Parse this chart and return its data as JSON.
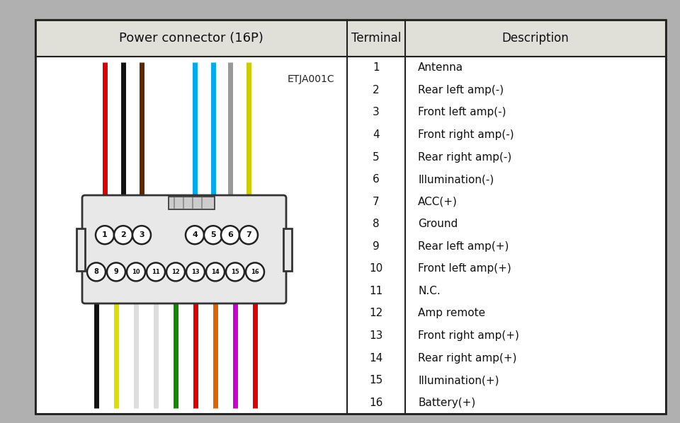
{
  "title_left": "Power connector (16P)",
  "title_terminal": "Terminal",
  "title_description": "Description",
  "code": "ETJA001C",
  "terminals": [
    1,
    2,
    3,
    4,
    5,
    6,
    7,
    8,
    9,
    10,
    11,
    12,
    13,
    14,
    15,
    16
  ],
  "descriptions": [
    "Antenna",
    "Rear left amp(-)",
    "Front left amp(-)",
    "Front right amp(-)",
    "Rear right amp(-)",
    "Illumination(-)",
    "ACC(+)",
    "Ground",
    "Rear left amp(+)",
    "Front left amp(+)",
    "N.C.",
    "Amp remote",
    "Front right amp(+)",
    "Rear right amp(+)",
    "Illumination(+)",
    "Battery(+)"
  ],
  "top_wire_colors": [
    "#dd0000",
    "#111111",
    "#5a2800",
    "#00aaee",
    "#00aaee",
    "#999999",
    "#cccc00"
  ],
  "bottom_wire_colors": [
    "#111111",
    "#dddd00",
    "#dddddd",
    "#dddddd",
    "#118800",
    "#dd0000",
    "#dd6600",
    "#cc00cc",
    "#dd0000"
  ],
  "fig_bg": "#b0b0b0",
  "table_bg": "#ffffff",
  "header_bg": "#e0e0d8",
  "border_color": "#222222",
  "connector_outline": "#333333",
  "connector_fill": "#e8e8e8"
}
